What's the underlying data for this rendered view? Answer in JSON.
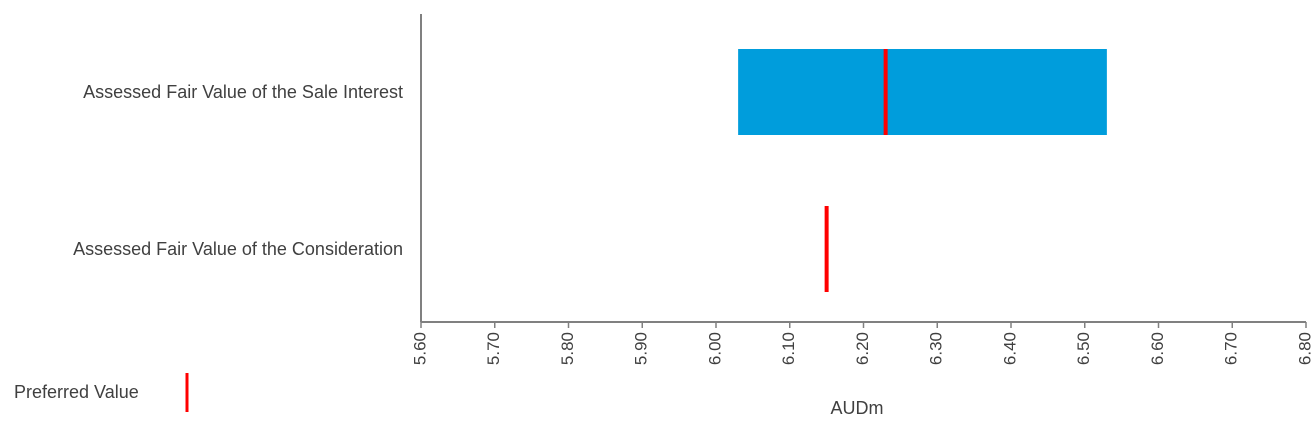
{
  "chart_data": {
    "type": "bar",
    "orientation": "horizontal",
    "categories": [
      "Assessed Fair Value of the Sale Interest",
      "Assessed Fair Value of the Consideration"
    ],
    "ranges": [
      {
        "category": "Assessed Fair Value of the Sale Interest",
        "low": 6.03,
        "high": 6.53
      },
      {
        "category": "Assessed Fair Value of the Consideration",
        "low": null,
        "high": null
      }
    ],
    "preferred_values": [
      6.23,
      6.15
    ],
    "xlim": [
      5.6,
      6.8
    ],
    "xticks": [
      "5.60",
      "5.70",
      "5.80",
      "5.90",
      "6.00",
      "6.10",
      "6.20",
      "6.30",
      "6.40",
      "6.50",
      "6.60",
      "6.70",
      "6.80"
    ],
    "xlabel": "AUDm",
    "ylabel": "",
    "title": "",
    "grid": false,
    "legend": {
      "placement": "bottom-left",
      "entries": [
        {
          "label": "Preferred Value",
          "color": "#ff0000",
          "marker": "vertical-line"
        }
      ]
    },
    "colors": {
      "range_bar": "#009ddc",
      "preferred": "#ff0000",
      "axis": "#808080"
    }
  }
}
